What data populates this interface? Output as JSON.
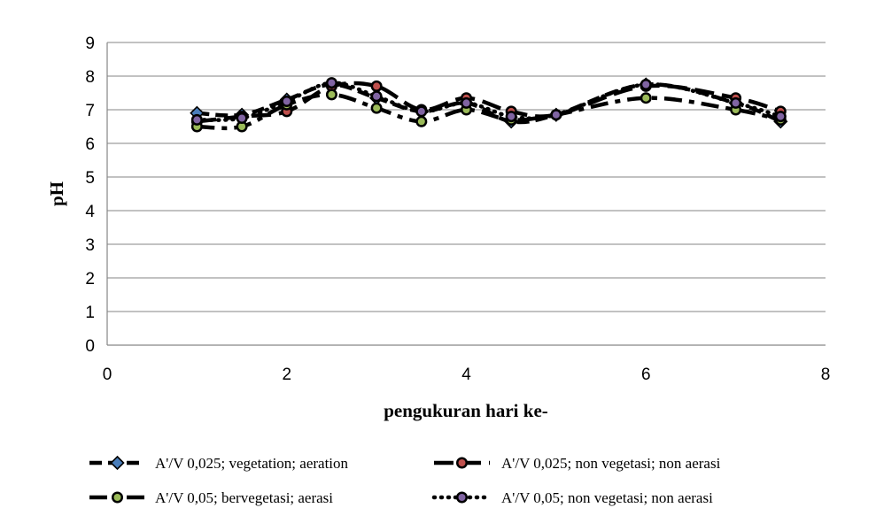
{
  "chart_data": {
    "type": "line",
    "title": "",
    "xlabel": "pengukuran hari ke-",
    "ylabel": "pH",
    "xlim": [
      0,
      8
    ],
    "ylim": [
      0,
      9
    ],
    "x_ticks": [
      "0",
      "2",
      "4",
      "6",
      "8"
    ],
    "y_ticks": [
      "0",
      "1",
      "2",
      "3",
      "4",
      "5",
      "6",
      "7",
      "8",
      "9"
    ],
    "grid": "horizontal",
    "legend_position": "bottom",
    "series": [
      {
        "name": "A'/V 0,025; vegetation; aeration",
        "line_style": "dashed",
        "marker": "diamond",
        "marker_color": "#4a7ebb",
        "x": [
          1,
          1.5,
          2,
          2.5,
          3,
          3.5,
          4,
          4.5,
          5,
          6,
          7,
          7.5
        ],
        "y": [
          6.9,
          6.85,
          7.3,
          7.75,
          7.35,
          6.95,
          7.2,
          6.65,
          6.85,
          7.75,
          7.2,
          6.65
        ]
      },
      {
        "name": "A'/V 0,025; non vegetasi; non aerasi",
        "line_style": "long-dashed",
        "marker": "circle",
        "marker_color": "#c0504d",
        "x": [
          1,
          1.5,
          2,
          2.5,
          3,
          3.5,
          4,
          4.5,
          5,
          6,
          7,
          7.5
        ],
        "y": [
          6.65,
          6.8,
          6.95,
          7.7,
          7.7,
          7.0,
          7.35,
          6.95,
          6.85,
          7.7,
          7.35,
          6.95
        ]
      },
      {
        "name": "A'/V 0,05; bervegetasi; aerasi",
        "line_style": "dash-dot",
        "marker": "circle",
        "marker_color": "#9bbb59",
        "x": [
          1,
          1.5,
          2,
          2.5,
          3,
          3.5,
          4,
          4.5,
          5,
          6,
          7,
          7.5
        ],
        "y": [
          6.5,
          6.5,
          7.15,
          7.45,
          7.05,
          6.65,
          7.0,
          6.7,
          6.85,
          7.35,
          7.0,
          6.7
        ]
      },
      {
        "name": "A'/V 0,05; non vegetasi; non aerasi",
        "line_style": "dotted",
        "marker": "circle",
        "marker_color": "#8064a2",
        "x": [
          1,
          1.5,
          2,
          2.5,
          3,
          3.5,
          4,
          4.5,
          5,
          6,
          7,
          7.5
        ],
        "y": [
          6.7,
          6.75,
          7.25,
          7.8,
          7.4,
          6.95,
          7.2,
          6.8,
          6.85,
          7.75,
          7.2,
          6.8
        ]
      }
    ]
  }
}
